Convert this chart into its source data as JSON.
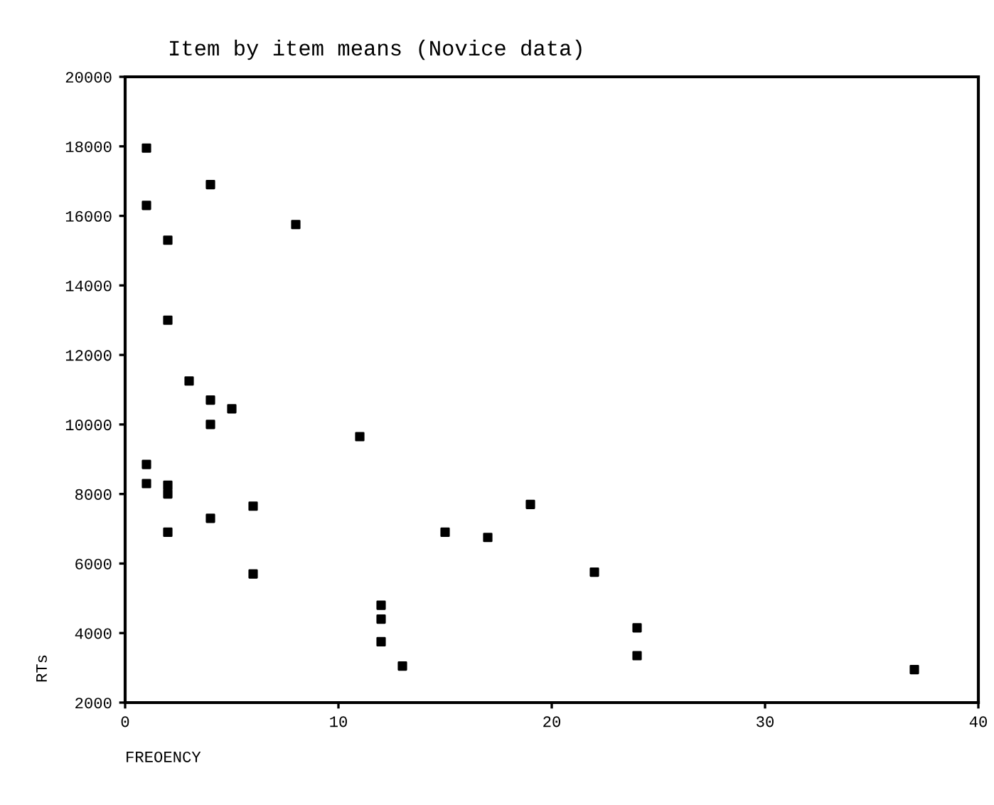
{
  "chart_data": {
    "type": "scatter",
    "title": "Item by item means (Novice data)",
    "xlabel": "FREOENCY",
    "ylabel": "RTs",
    "x": [
      1,
      1,
      2,
      2,
      4,
      8,
      3,
      4,
      5,
      4,
      11,
      1,
      1,
      2,
      2,
      2,
      4,
      6,
      6,
      12,
      12,
      12,
      13,
      15,
      17,
      19,
      22,
      24,
      24,
      37
    ],
    "values": [
      17950,
      16300,
      15300,
      13000,
      16900,
      15750,
      11250,
      10700,
      10450,
      10000,
      9650,
      8850,
      8300,
      8250,
      8000,
      6900,
      7300,
      7650,
      5700,
      4800,
      4400,
      3750,
      3050,
      6900,
      6750,
      7700,
      5750,
      4150,
      3350,
      2950
    ],
    "color": "#000000",
    "marker": "square",
    "xlim": [
      0,
      40
    ],
    "xticks": [
      0,
      10,
      20,
      30,
      40
    ],
    "ylim": [
      2000,
      20000
    ],
    "yticks": [
      2000,
      4000,
      6000,
      8000,
      10000,
      12000,
      14000,
      16000,
      18000,
      20000
    ],
    "grid": false
  }
}
